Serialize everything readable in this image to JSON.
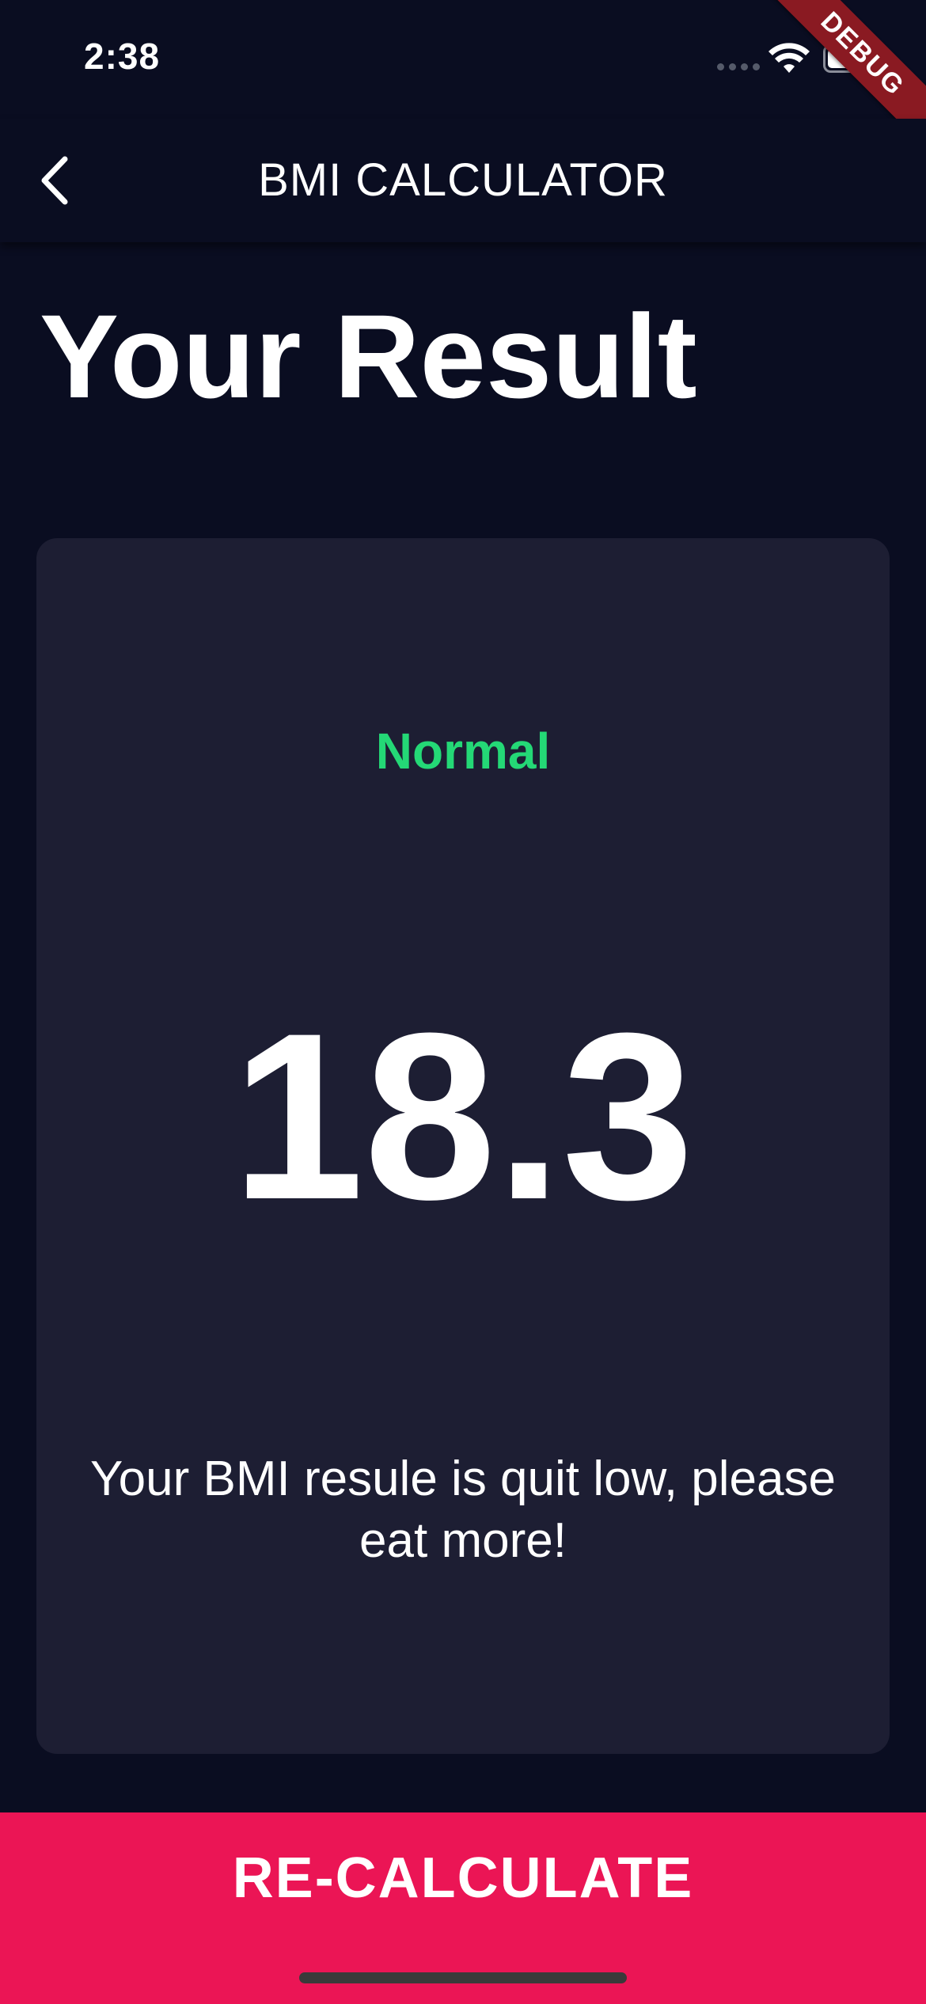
{
  "status_bar": {
    "time": "2:38",
    "debug_label": "DEBUG"
  },
  "app_bar": {
    "title": "BMI CALCULATOR",
    "back_icon": "chevron-left-icon"
  },
  "page": {
    "title": "Your Result"
  },
  "result": {
    "status": "Normal",
    "value": "18.3",
    "message": "Your BMI resule is quit low, please eat more!"
  },
  "bottom_button": {
    "label": "RE-CALCULATE"
  },
  "colors": {
    "background": "#0a0d21",
    "card": "#1d1e33",
    "accent": "#eb1555",
    "status_green": "#24d876"
  }
}
